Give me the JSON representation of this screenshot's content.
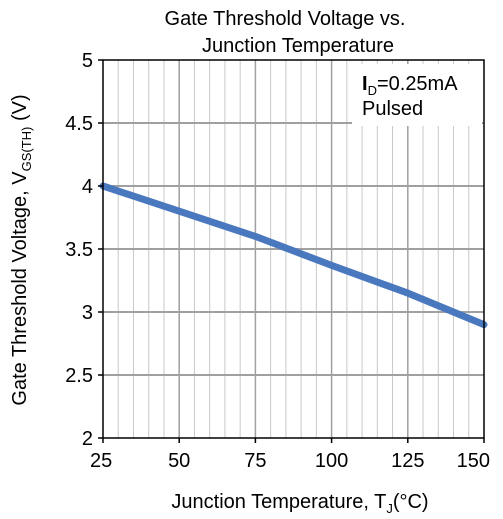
{
  "chart_data": {
    "type": "line",
    "title_line1": "Gate Threshold  Voltage vs.",
    "title_line2": "Junction Temperature",
    "xlabel": {
      "main": "Junction Temperature, T",
      "sub": "J",
      "unit": "(°C)"
    },
    "ylabel": {
      "main": "Gate Threshold  Voltage, V",
      "sub": "GS(TH)",
      "unit": " (V)"
    },
    "xlim": [
      25,
      150
    ],
    "ylim": [
      2,
      5
    ],
    "x_ticks": [
      "25",
      "50",
      "75",
      "100",
      "125",
      "150"
    ],
    "y_ticks": [
      "2",
      "2.5",
      "3",
      "3.5",
      "4",
      "4.5",
      "5"
    ],
    "grid": true,
    "legend_box": {
      "line1_main": "I",
      "line1_sub": "D",
      "line1_rest": "=0.25mA",
      "line2": "Pulsed",
      "placement": "top-right"
    },
    "series": [
      {
        "color": "#4a78be",
        "x": [
          25,
          50,
          75,
          100,
          125,
          150
        ],
        "y": [
          4.0,
          3.8,
          3.6,
          3.37,
          3.15,
          2.9
        ]
      }
    ]
  }
}
